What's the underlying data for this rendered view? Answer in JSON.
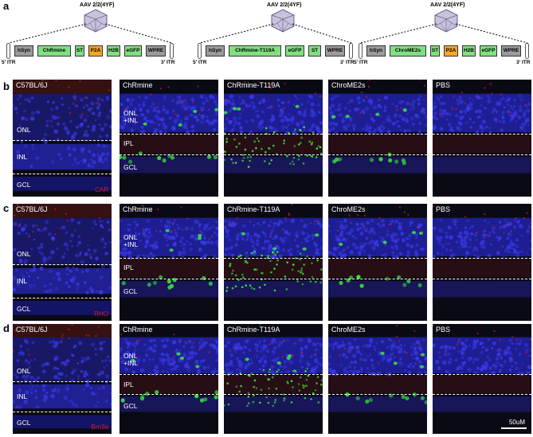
{
  "panel_labels": {
    "a": "a",
    "b": "b",
    "c": "c",
    "d": "d"
  },
  "constructs": [
    {
      "aav_label": "AAV 2/2(4YF)",
      "itr_left": "5' ITR",
      "itr_right": "3' ITR",
      "elements": [
        {
          "label": "hSyn",
          "color": "grey"
        },
        {
          "label": "ChRmine",
          "color": "green"
        },
        {
          "label": "ST",
          "color": "green"
        },
        {
          "label": "P2A",
          "color": "orange"
        },
        {
          "label": "H2B",
          "color": "green"
        },
        {
          "label": "eGFP",
          "color": "green"
        },
        {
          "label": "WPRE",
          "color": "grey"
        }
      ]
    },
    {
      "aav_label": "AAV 2/2(4YF)",
      "itr_left": "5' ITR",
      "itr_right": "3' ITR",
      "elements": [
        {
          "label": "hSyn",
          "color": "grey"
        },
        {
          "label": "ChRmine-T119A",
          "color": "green"
        },
        {
          "label": "eGFP",
          "color": "green"
        },
        {
          "label": "ST",
          "color": "green"
        },
        {
          "label": "WPRE",
          "color": "grey"
        }
      ]
    },
    {
      "aav_label": "AAV 2/2(4YF)",
      "itr_left": "5' ITR",
      "itr_right": "3' ITR",
      "elements": [
        {
          "label": "hSyn",
          "color": "grey"
        },
        {
          "label": "ChroME2s",
          "color": "green"
        },
        {
          "label": "ST",
          "color": "green"
        },
        {
          "label": "P2A",
          "color": "orange"
        },
        {
          "label": "H2B",
          "color": "green"
        },
        {
          "label": "eGFP",
          "color": "green"
        },
        {
          "label": "WPRE",
          "color": "grey"
        }
      ]
    }
  ],
  "rows": {
    "b": {
      "titles": [
        "C57BL/6J",
        "ChRmine",
        "ChRmine-T119A",
        "ChroME2s",
        "PBS"
      ],
      "wt_layers": {
        "onl": "ONL",
        "inl": "INL",
        "gcl": "GCL"
      },
      "stain": "CAR",
      "layers": {
        "onl_inl": "ONL\n+INL",
        "ipl": "IPL",
        "gcl": "GCL"
      }
    },
    "c": {
      "titles": [
        "C57BL/6J",
        "ChRmine",
        "ChRmine-T119A",
        "ChroME2s",
        "PBS"
      ],
      "wt_layers": {
        "onl": "ONL",
        "inl": "INL",
        "gcl": "GCL"
      },
      "stain": "RHO",
      "layers": {
        "onl_inl": "ONL\n+INL",
        "ipl": "IPL",
        "gcl": "GCL"
      }
    },
    "d": {
      "titles": [
        "C57BL/6J",
        "ChRmine",
        "ChRmine-T119A",
        "ChroME2s",
        "PBS"
      ],
      "wt_layers": {
        "onl": "ONL",
        "inl": "INL",
        "gcl": "GCL"
      },
      "stain": "Brn3a",
      "layers": {
        "onl_inl": "ONL\n+INL",
        "ipl": "IPL",
        "gcl": "GCL"
      }
    }
  },
  "scale_bar": "50uM",
  "colors": {
    "dapi": "#2a2ad8",
    "green": "#39e639",
    "red": "#d02020",
    "stain_dapi_text": "#3a4cff"
  }
}
